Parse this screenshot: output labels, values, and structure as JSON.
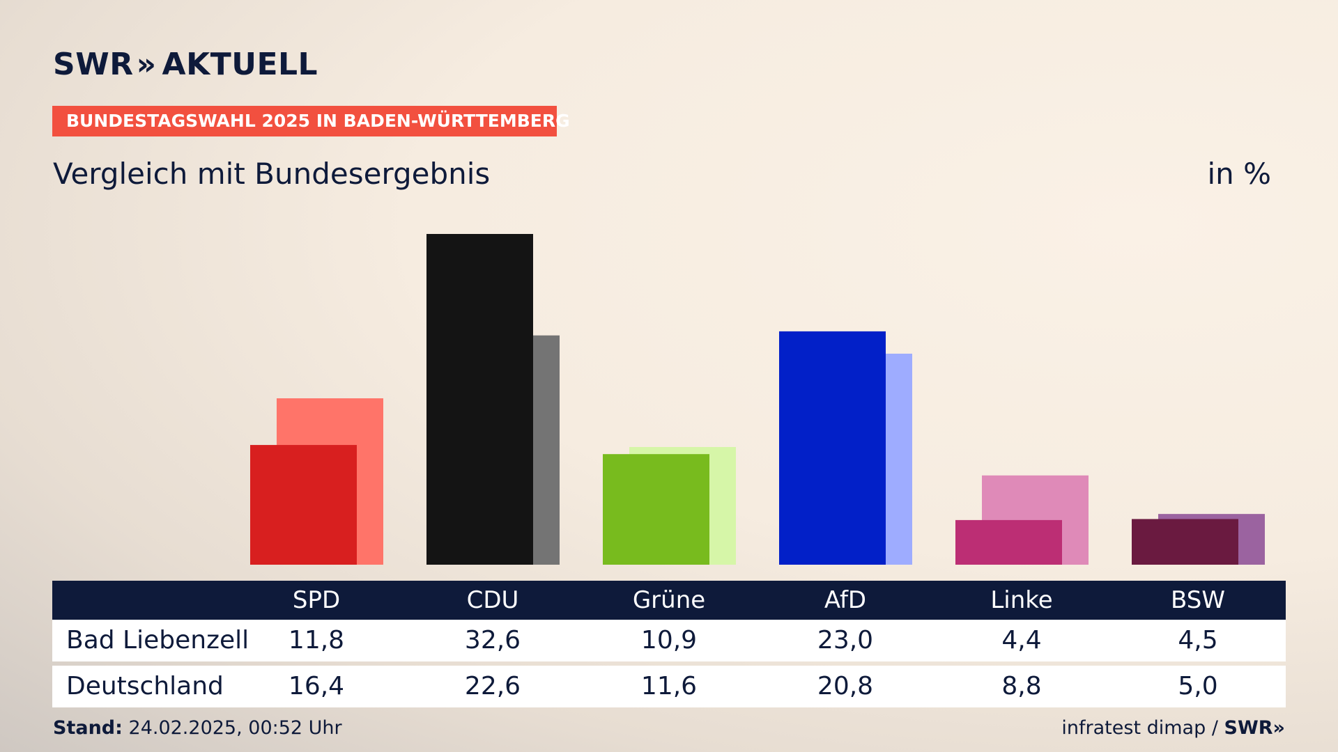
{
  "header": {
    "logo_text": "SWR",
    "logo_sep": "»",
    "logo_suffix": "AKTUELL",
    "kicker": "BUNDESTAGSWAHL 2025 IN BADEN-WÜRTTEMBERG",
    "subtitle": "Vergleich mit Bundesergebnis",
    "unit": "in %"
  },
  "chart_data": {
    "type": "bar",
    "categories": [
      "SPD",
      "CDU",
      "Grüne",
      "AfD",
      "Linke",
      "BSW"
    ],
    "series": [
      {
        "name": "Bad Liebenzell",
        "values": [
          11.8,
          32.6,
          10.9,
          23.0,
          4.4,
          4.5
        ],
        "labels": [
          "11,8",
          "32,6",
          "10,9",
          "23,0",
          "4,4",
          "4,5"
        ],
        "colors": [
          "#d81f1f",
          "#141414",
          "#78bb1e",
          "#0220c8",
          "#bc2e74",
          "#6a1a40"
        ]
      },
      {
        "name": "Deutschland",
        "values": [
          16.4,
          22.6,
          11.6,
          20.8,
          8.8,
          5.0
        ],
        "labels": [
          "16,4",
          "22,6",
          "11,6",
          "20,8",
          "8,8",
          "5,0"
        ],
        "colors": [
          "#ff7469",
          "#747474",
          "#d6f6a8",
          "#9eacff",
          "#df8ab8",
          "#9b63a0"
        ]
      }
    ],
    "ylim": [
      0,
      32.6
    ],
    "grid": false,
    "legend": "table-below"
  },
  "footer": {
    "stand_label": "Stand:",
    "stand_value": "24.02.2025, 00:52 Uhr",
    "source": "infratest dimap /",
    "brand": "SWR»"
  }
}
